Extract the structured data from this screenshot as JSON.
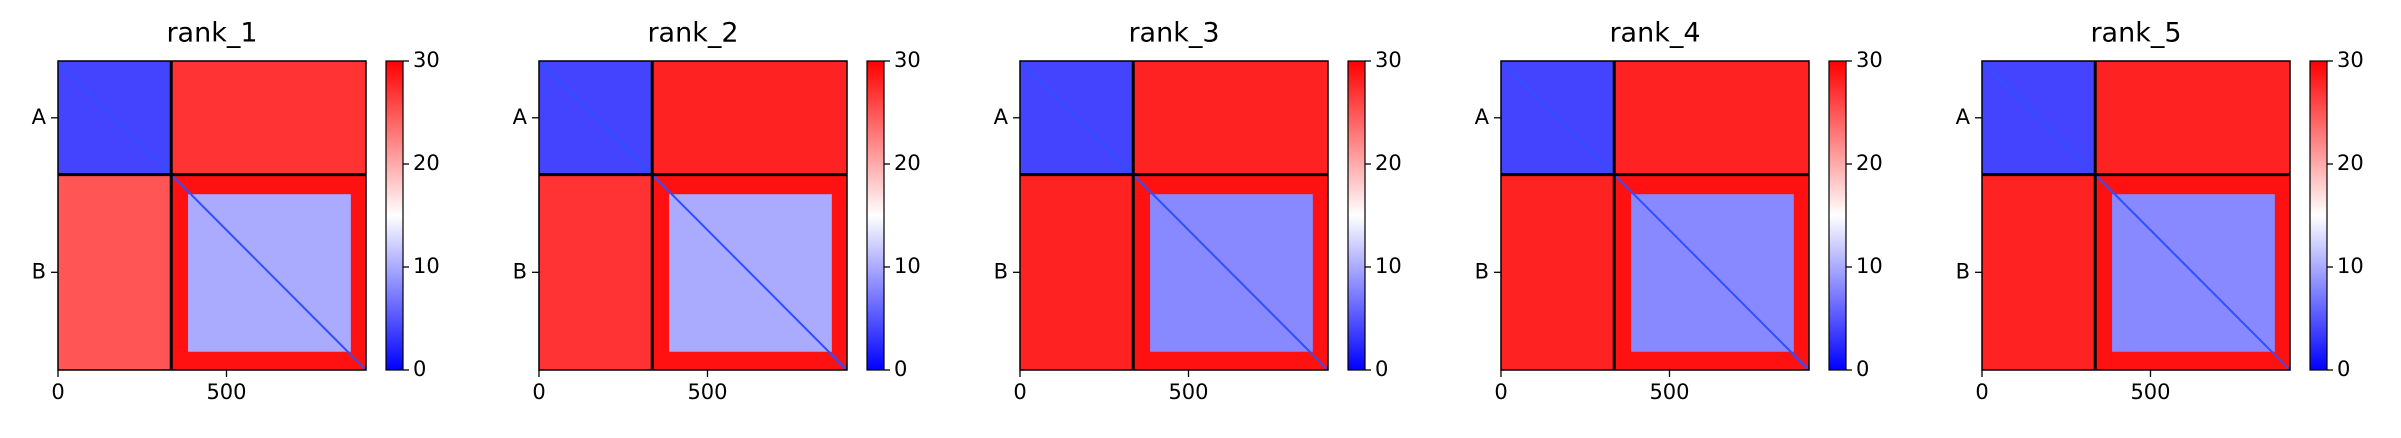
{
  "chart_data": [
    {
      "type": "heatmap",
      "title": "rank_1",
      "xlim": [
        0,
        914
      ],
      "xticks": [
        0,
        500
      ],
      "ylim": [
        914,
        0
      ],
      "yticks": [
        {
          "value": 168,
          "label": "A"
        },
        {
          "value": 625,
          "label": "B"
        }
      ],
      "chain_breaks": [
        336
      ],
      "colormap": [
        "#0000ff",
        "#ffffff",
        "#ff0000"
      ],
      "clim": [
        0,
        30
      ],
      "cticks": [
        0,
        10,
        20,
        30
      ],
      "regions": [
        {
          "x": [
            0,
            336
          ],
          "y": [
            0,
            336
          ],
          "value": 4
        },
        {
          "x": [
            336,
            914
          ],
          "y": [
            0,
            336
          ],
          "value": 27
        },
        {
          "x": [
            0,
            336
          ],
          "y": [
            336,
            914
          ],
          "value": 25
        },
        {
          "x": [
            336,
            914
          ],
          "y": [
            336,
            914
          ],
          "value": 29
        },
        {
          "x": [
            386,
            869
          ],
          "y": [
            394,
            860
          ],
          "value": 10
        }
      ]
    },
    {
      "type": "heatmap",
      "title": "rank_2",
      "xlim": [
        0,
        914
      ],
      "xticks": [
        0,
        500
      ],
      "ylim": [
        914,
        0
      ],
      "yticks": [
        {
          "value": 168,
          "label": "A"
        },
        {
          "value": 625,
          "label": "B"
        }
      ],
      "chain_breaks": [
        336
      ],
      "colormap": [
        "#0000ff",
        "#ffffff",
        "#ff0000"
      ],
      "clim": [
        0,
        30
      ],
      "cticks": [
        0,
        10,
        20,
        30
      ],
      "regions": [
        {
          "x": [
            0,
            336
          ],
          "y": [
            0,
            336
          ],
          "value": 4
        },
        {
          "x": [
            336,
            914
          ],
          "y": [
            0,
            336
          ],
          "value": 28
        },
        {
          "x": [
            0,
            336
          ],
          "y": [
            336,
            914
          ],
          "value": 27
        },
        {
          "x": [
            336,
            914
          ],
          "y": [
            336,
            914
          ],
          "value": 29
        },
        {
          "x": [
            386,
            869
          ],
          "y": [
            394,
            860
          ],
          "value": 10
        }
      ]
    },
    {
      "type": "heatmap",
      "title": "rank_3",
      "xlim": [
        0,
        914
      ],
      "xticks": [
        0,
        500
      ],
      "ylim": [
        914,
        0
      ],
      "yticks": [
        {
          "value": 168,
          "label": "A"
        },
        {
          "value": 625,
          "label": "B"
        }
      ],
      "chain_breaks": [
        336
      ],
      "colormap": [
        "#0000ff",
        "#ffffff",
        "#ff0000"
      ],
      "clim": [
        0,
        30
      ],
      "cticks": [
        0,
        10,
        20,
        30
      ],
      "regions": [
        {
          "x": [
            0,
            336
          ],
          "y": [
            0,
            336
          ],
          "value": 4
        },
        {
          "x": [
            336,
            914
          ],
          "y": [
            0,
            336
          ],
          "value": 28
        },
        {
          "x": [
            0,
            336
          ],
          "y": [
            336,
            914
          ],
          "value": 28
        },
        {
          "x": [
            336,
            914
          ],
          "y": [
            336,
            914
          ],
          "value": 29
        },
        {
          "x": [
            386,
            869
          ],
          "y": [
            394,
            860
          ],
          "value": 8
        }
      ]
    },
    {
      "type": "heatmap",
      "title": "rank_4",
      "xlim": [
        0,
        914
      ],
      "xticks": [
        0,
        500
      ],
      "ylim": [
        914,
        0
      ],
      "yticks": [
        {
          "value": 168,
          "label": "A"
        },
        {
          "value": 625,
          "label": "B"
        }
      ],
      "chain_breaks": [
        336
      ],
      "colormap": [
        "#0000ff",
        "#ffffff",
        "#ff0000"
      ],
      "clim": [
        0,
        30
      ],
      "cticks": [
        0,
        10,
        20,
        30
      ],
      "regions": [
        {
          "x": [
            0,
            336
          ],
          "y": [
            0,
            336
          ],
          "value": 4
        },
        {
          "x": [
            336,
            914
          ],
          "y": [
            0,
            336
          ],
          "value": 28
        },
        {
          "x": [
            0,
            336
          ],
          "y": [
            336,
            914
          ],
          "value": 28
        },
        {
          "x": [
            336,
            914
          ],
          "y": [
            336,
            914
          ],
          "value": 29
        },
        {
          "x": [
            386,
            869
          ],
          "y": [
            394,
            860
          ],
          "value": 8
        }
      ]
    },
    {
      "type": "heatmap",
      "title": "rank_5",
      "xlim": [
        0,
        914
      ],
      "xticks": [
        0,
        500
      ],
      "ylim": [
        914,
        0
      ],
      "yticks": [
        {
          "value": 168,
          "label": "A"
        },
        {
          "value": 625,
          "label": "B"
        }
      ],
      "chain_breaks": [
        336
      ],
      "colormap": [
        "#0000ff",
        "#ffffff",
        "#ff0000"
      ],
      "clim": [
        0,
        30
      ],
      "cticks": [
        0,
        10,
        20,
        30
      ],
      "regions": [
        {
          "x": [
            0,
            336
          ],
          "y": [
            0,
            336
          ],
          "value": 4
        },
        {
          "x": [
            336,
            914
          ],
          "y": [
            0,
            336
          ],
          "value": 28
        },
        {
          "x": [
            0,
            336
          ],
          "y": [
            336,
            914
          ],
          "value": 28
        },
        {
          "x": [
            336,
            914
          ],
          "y": [
            336,
            914
          ],
          "value": 29
        },
        {
          "x": [
            386,
            869
          ],
          "y": [
            394,
            860
          ],
          "value": 8
        }
      ]
    }
  ]
}
